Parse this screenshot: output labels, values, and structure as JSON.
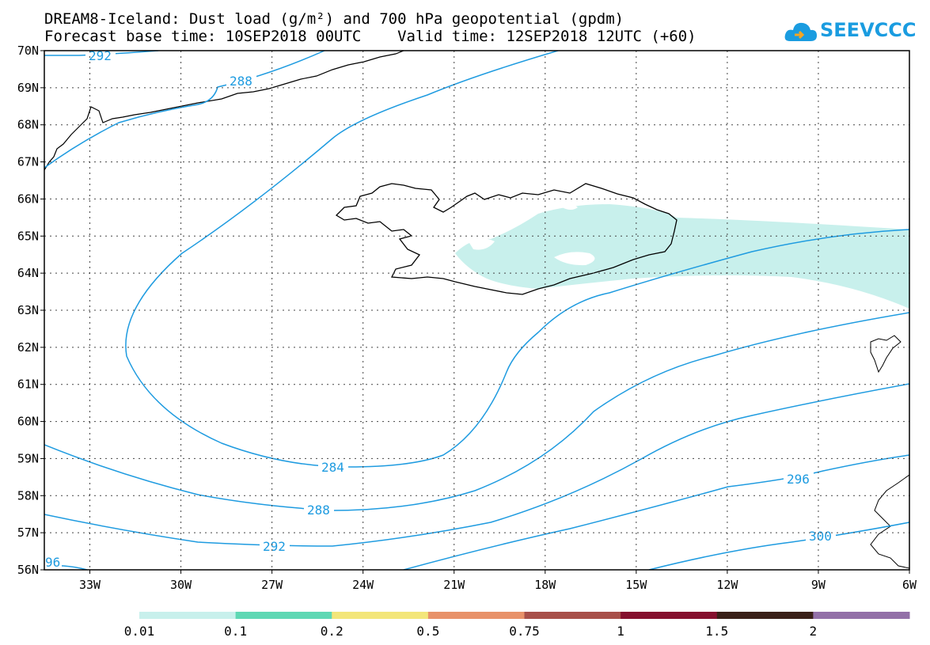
{
  "title": {
    "line1": "DREAM8-Iceland: Dust load (g/m²) and 700 hPa geopotential (gpdm)",
    "line2": "Forecast base time: 10SEP2018 00UTC    Valid time: 12SEP2018 12UTC (+60)"
  },
  "logo": {
    "text": "SEEVCCC",
    "icon": "cloud-icon"
  },
  "map": {
    "lat_labels": [
      "70N",
      "69N",
      "68N",
      "67N",
      "66N",
      "65N",
      "64N",
      "63N",
      "62N",
      "61N",
      "60N",
      "59N",
      "58N",
      "57N",
      "56N"
    ],
    "lon_labels": [
      "33W",
      "30W",
      "27W",
      "24W",
      "21W",
      "18W",
      "15W",
      "12W",
      "9W",
      "6W"
    ],
    "lat_range": [
      56,
      70
    ],
    "lon_range": [
      -34.5,
      -6
    ],
    "grid": "dotted"
  },
  "contours": {
    "color": "#1e9be0",
    "labels": [
      "292",
      "288",
      "284",
      "288",
      "292",
      "296",
      "300",
      "96"
    ]
  },
  "dust_region": {
    "color": "#c8f0ec",
    "level": "0.01-0.1"
  },
  "colorbar": {
    "colors": [
      "#c8f0ec",
      "#5fd8b4",
      "#f3e67a",
      "#e8926a",
      "#a8504a",
      "#85102e",
      "#3a2018",
      "#9370a8"
    ],
    "tick_labels": [
      "0.01",
      "0.1",
      "0.2",
      "0.5",
      "0.75",
      "1",
      "1.5",
      "2"
    ]
  }
}
